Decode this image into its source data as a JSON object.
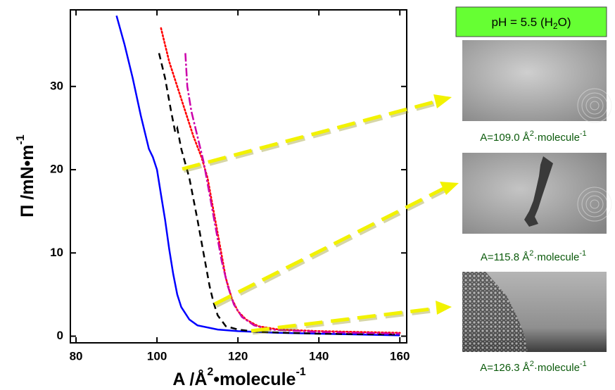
{
  "chart_data": {
    "type": "line",
    "xlabel_parts": [
      "A /Å",
      "2",
      "•molecule",
      "-1"
    ],
    "ylabel_parts": [
      "Π /mN•m",
      "-1"
    ],
    "xlim": [
      78.6,
      161.7
    ],
    "ylim": [
      -0.8,
      39.2
    ],
    "xticks": [
      80,
      100,
      120,
      140,
      160
    ],
    "yticks": [
      0,
      10,
      20,
      30
    ],
    "series": [
      {
        "color": "#0000ff",
        "dash": "solid",
        "x": [
          90,
          92,
          94,
          96,
          98,
          99,
          100,
          101,
          102,
          103,
          104,
          105,
          106,
          108,
          110,
          115,
          120,
          130,
          140,
          160
        ],
        "values": [
          38.5,
          35,
          31,
          26.5,
          22.5,
          21.5,
          20,
          17,
          14,
          10.5,
          7.5,
          5,
          3.5,
          2,
          1.3,
          0.8,
          0.6,
          0.4,
          0.3,
          0.1
        ]
      },
      {
        "color": "#000000",
        "dash": "dashed",
        "x": [
          100.5,
          102,
          103.5,
          104.5,
          105,
          106,
          108,
          110,
          111.5,
          113,
          114,
          115,
          117,
          120,
          125,
          140,
          160
        ],
        "values": [
          34,
          31,
          27,
          24.5,
          25,
          22.5,
          19,
          14,
          10,
          6,
          4,
          2.5,
          1.2,
          0.8,
          0.5,
          0.3,
          0.2
        ]
      },
      {
        "color": "#ff0000",
        "dash": "dotted",
        "x": [
          101,
          103,
          105,
          107,
          109,
          111,
          112.5,
          114,
          115.5,
          117,
          118.5,
          120,
          122,
          125,
          130,
          140,
          160
        ],
        "values": [
          37,
          33,
          30,
          27,
          24,
          21.5,
          19,
          15,
          11,
          7,
          4.5,
          3,
          2,
          1.2,
          0.8,
          0.6,
          0.4
        ]
      },
      {
        "color": "#cc00aa",
        "dash": "dashdot",
        "x": [
          107,
          107.5,
          108.5,
          110,
          111.5,
          113,
          114.5,
          116,
          117.5,
          119,
          121,
          124,
          128,
          140,
          160
        ],
        "values": [
          34,
          30,
          27,
          24,
          21,
          17,
          13,
          9,
          6,
          3.8,
          2.3,
          1.3,
          0.8,
          0.5,
          0.3
        ]
      }
    ]
  },
  "panel": {
    "title_parts": [
      "pH = 5.5 (H",
      "2",
      "O)"
    ],
    "images": [
      {
        "caption_parts": [
          "A=109.0 Å",
          "2",
          "·molecule",
          "-1"
        ]
      },
      {
        "caption_parts": [
          "A=115.8 Å",
          "2",
          "·molecule",
          "-1"
        ]
      },
      {
        "caption_parts": [
          "A=126.3 Å",
          "2",
          "·molecule",
          "-1"
        ]
      }
    ]
  }
}
